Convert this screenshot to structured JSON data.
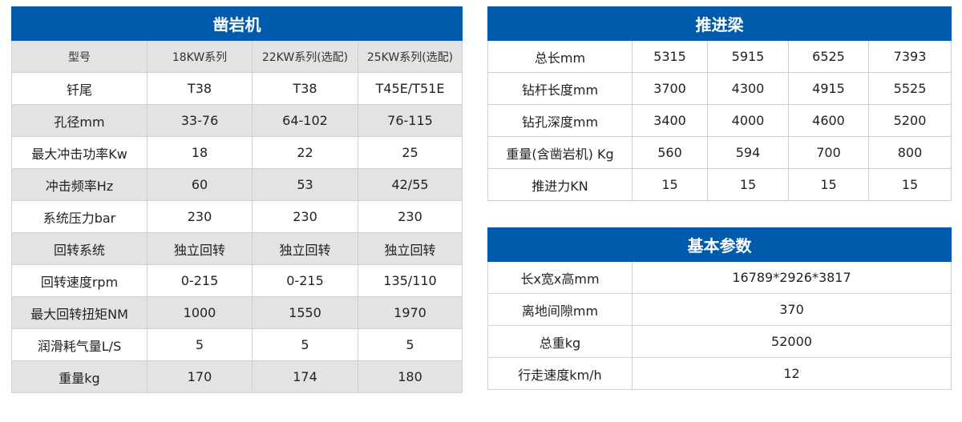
{
  "rock_drill": {
    "title": "凿岩机",
    "header": [
      "型号",
      "18KW系列",
      "22KW系列(选配)",
      "25KW系列(选配)"
    ],
    "rows": [
      [
        "钎尾",
        "T38",
        "T38",
        "T45E/T51E"
      ],
      [
        "孔径mm",
        "33-76",
        "64-102",
        "76-115"
      ],
      [
        "最大冲击功率Kw",
        "18",
        "22",
        "25"
      ],
      [
        "冲击频率Hz",
        "60",
        "53",
        "42/55"
      ],
      [
        "系统压力bar",
        "230",
        "230",
        "230"
      ],
      [
        "回转系统",
        "独立回转",
        "独立回转",
        "独立回转"
      ],
      [
        "回转速度rpm",
        "0-215",
        "0-215",
        "135/110"
      ],
      [
        "最大回转扭矩NM",
        "1000",
        "1550",
        "1970"
      ],
      [
        "润滑耗气量L/S",
        "5",
        "5",
        "5"
      ],
      [
        "重量kg",
        "170",
        "174",
        "180"
      ]
    ]
  },
  "feed_beam": {
    "title": "推进梁",
    "rows": [
      [
        "总长mm",
        "5315",
        "5915",
        "6525",
        "7393"
      ],
      [
        "钻杆长度mm",
        "3700",
        "4300",
        "4915",
        "5525"
      ],
      [
        "钻孔深度mm",
        "3400",
        "4000",
        "4600",
        "5200"
      ],
      [
        "重量(含凿岩机) Kg",
        "560",
        "594",
        "700",
        "800"
      ],
      [
        "推进力KN",
        "15",
        "15",
        "15",
        "15"
      ]
    ]
  },
  "basic_params": {
    "title": "基本参数",
    "rows": [
      [
        "长x宽x高mm",
        "16789*2926*3817"
      ],
      [
        "离地间隙mm",
        "370"
      ],
      [
        "总重kg",
        "52000"
      ],
      [
        "行走速度km/h",
        "12"
      ]
    ]
  },
  "colors": {
    "header_blue": "#005bac",
    "row_gray": "#e3e3e3"
  }
}
